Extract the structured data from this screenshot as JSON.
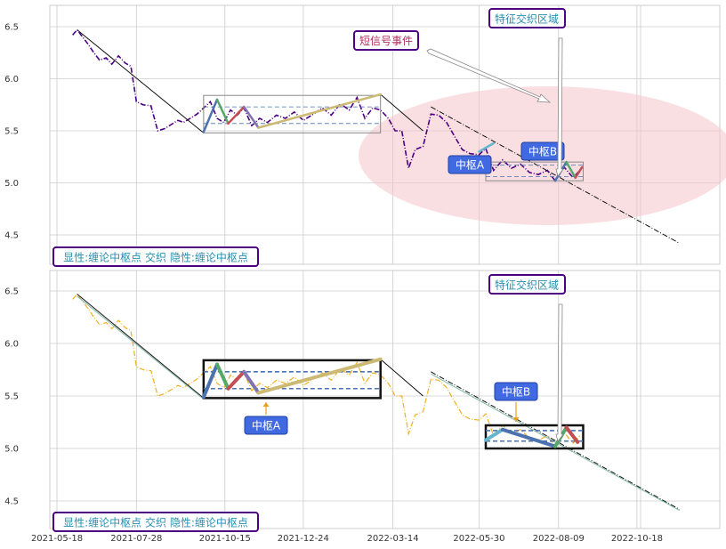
{
  "chart_data": [
    {
      "type": "line",
      "panel": "top",
      "ylim": [
        4.25,
        6.68
      ],
      "yticks": [
        4.5,
        5.0,
        5.5,
        6.0,
        6.5
      ],
      "grid": true,
      "price_color": "#4b0082",
      "price": [
        {
          "x": "2021-06-01",
          "y": 6.42
        },
        {
          "x": "2021-06-05",
          "y": 6.47
        },
        {
          "x": "2021-06-10",
          "y": 6.4
        },
        {
          "x": "2021-06-15",
          "y": 6.33
        },
        {
          "x": "2021-06-20",
          "y": 6.25
        },
        {
          "x": "2021-06-25",
          "y": 6.18
        },
        {
          "x": "2021-07-01",
          "y": 6.2
        },
        {
          "x": "2021-07-06",
          "y": 6.14
        },
        {
          "x": "2021-07-12",
          "y": 6.22
        },
        {
          "x": "2021-07-18",
          "y": 6.15
        },
        {
          "x": "2021-07-23",
          "y": 6.12
        },
        {
          "x": "2021-07-28",
          "y": 5.78
        },
        {
          "x": "2021-08-03",
          "y": 5.75
        },
        {
          "x": "2021-08-10",
          "y": 5.74
        },
        {
          "x": "2021-08-16",
          "y": 5.5
        },
        {
          "x": "2021-08-22",
          "y": 5.52
        },
        {
          "x": "2021-08-28",
          "y": 5.56
        },
        {
          "x": "2021-09-03",
          "y": 5.6
        },
        {
          "x": "2021-09-08",
          "y": 5.58
        },
        {
          "x": "2021-09-14",
          "y": 5.62
        },
        {
          "x": "2021-09-20",
          "y": 5.66
        },
        {
          "x": "2021-09-26",
          "y": 5.72
        },
        {
          "x": "2021-10-02",
          "y": 5.78
        },
        {
          "x": "2021-10-08",
          "y": 5.62
        },
        {
          "x": "2021-10-14",
          "y": 5.58
        },
        {
          "x": "2021-10-20",
          "y": 5.7
        },
        {
          "x": "2021-10-26",
          "y": 5.65
        },
        {
          "x": "2021-11-01",
          "y": 5.72
        },
        {
          "x": "2021-11-08",
          "y": 5.55
        },
        {
          "x": "2021-11-15",
          "y": 5.62
        },
        {
          "x": "2021-11-22",
          "y": 5.58
        },
        {
          "x": "2021-11-30",
          "y": 5.65
        },
        {
          "x": "2021-12-08",
          "y": 5.62
        },
        {
          "x": "2021-12-16",
          "y": 5.68
        },
        {
          "x": "2021-12-24",
          "y": 5.6
        },
        {
          "x": "2022-01-02",
          "y": 5.66
        },
        {
          "x": "2022-01-10",
          "y": 5.72
        },
        {
          "x": "2022-01-18",
          "y": 5.65
        },
        {
          "x": "2022-01-26",
          "y": 5.76
        },
        {
          "x": "2022-02-03",
          "y": 5.7
        },
        {
          "x": "2022-02-10",
          "y": 5.82
        },
        {
          "x": "2022-02-17",
          "y": 5.62
        },
        {
          "x": "2022-02-24",
          "y": 5.72
        },
        {
          "x": "2022-03-03",
          "y": 5.7
        },
        {
          "x": "2022-03-10",
          "y": 5.62
        },
        {
          "x": "2022-03-16",
          "y": 5.5
        },
        {
          "x": "2022-03-22",
          "y": 5.5
        },
        {
          "x": "2022-03-28",
          "y": 5.14
        },
        {
          "x": "2022-04-03",
          "y": 5.32
        },
        {
          "x": "2022-04-10",
          "y": 5.35
        },
        {
          "x": "2022-04-17",
          "y": 5.66
        },
        {
          "x": "2022-04-24",
          "y": 5.65
        },
        {
          "x": "2022-05-01",
          "y": 5.58
        },
        {
          "x": "2022-05-08",
          "y": 5.45
        },
        {
          "x": "2022-05-15",
          "y": 5.32
        },
        {
          "x": "2022-05-22",
          "y": 5.28
        },
        {
          "x": "2022-05-30",
          "y": 5.27
        },
        {
          "x": "2022-06-05",
          "y": 5.33
        },
        {
          "x": "2022-06-12",
          "y": 5.12
        },
        {
          "x": "2022-06-20",
          "y": 5.22
        },
        {
          "x": "2022-06-28",
          "y": 5.14
        },
        {
          "x": "2022-07-06",
          "y": 5.18
        },
        {
          "x": "2022-07-14",
          "y": 5.1
        },
        {
          "x": "2022-07-22",
          "y": 5.08
        },
        {
          "x": "2022-07-30",
          "y": 5.12
        },
        {
          "x": "2022-08-06",
          "y": 5.02
        },
        {
          "x": "2022-08-14",
          "y": 5.15
        },
        {
          "x": "2022-08-22",
          "y": 5.05
        },
        {
          "x": "2022-08-28",
          "y": 5.12
        }
      ],
      "strokes": [
        {
          "x0": "2021-06-05",
          "y0": 6.47,
          "x1": "2021-09-26",
          "y1": 5.48
        },
        {
          "x0": "2022-03-03",
          "y0": 5.85,
          "x1": "2022-04-10",
          "y1": 5.5
        },
        {
          "x0": "2022-04-17",
          "y0": 5.73,
          "x1": "2022-11-25",
          "y1": 4.42
        }
      ],
      "bi_segments": [
        {
          "color": "#4c72b0",
          "points": [
            [
              "2021-09-26",
              5.49
            ],
            [
              "2021-10-08",
              5.8
            ]
          ]
        },
        {
          "color": "#55a868",
          "points": [
            [
              "2021-10-08",
              5.8
            ],
            [
              "2021-10-18",
              5.57
            ]
          ]
        },
        {
          "color": "#c44e52",
          "points": [
            [
              "2021-10-18",
              5.57
            ],
            [
              "2021-11-01",
              5.73
            ]
          ]
        },
        {
          "color": "#8172b2",
          "points": [
            [
              "2021-11-01",
              5.73
            ],
            [
              "2021-11-14",
              5.53
            ]
          ]
        },
        {
          "color": "#ccb974",
          "points": [
            [
              "2021-11-14",
              5.53
            ],
            [
              "2022-03-03",
              5.85
            ]
          ]
        },
        {
          "color": "#64b5cd",
          "points": [
            [
              "2022-05-30",
              5.3
            ],
            [
              "2022-06-12",
              5.38
            ]
          ]
        },
        {
          "color": "#4c72b0",
          "points": [
            [
              "2022-08-06",
              5.02
            ],
            [
              "2022-08-16",
              5.2
            ]
          ]
        },
        {
          "color": "#55a868",
          "points": [
            [
              "2022-08-16",
              5.2
            ],
            [
              "2022-08-24",
              5.05
            ]
          ]
        },
        {
          "color": "#c44e52",
          "points": [
            [
              "2022-08-24",
              5.05
            ],
            [
              "2022-08-30",
              5.15
            ]
          ]
        }
      ],
      "pivots": [
        {
          "x0": "2021-09-26",
          "x1": "2022-03-03",
          "y0": 5.48,
          "y1": 5.84,
          "inner_low": 5.57,
          "inner_high": 5.73
        },
        {
          "x0": "2022-06-05",
          "x1": "2022-08-31",
          "y0": 5.02,
          "y1": 5.2,
          "inner_low": 5.06,
          "inner_high": 5.17
        }
      ],
      "labels": [
        "中枢A",
        "中枢B"
      ],
      "annotations": {
        "signal_event": "短信号事件",
        "feature_zone": "特征交织区域",
        "legend": "显性:缠论中枢点 交织 隐性:缠论中枢点"
      }
    },
    {
      "type": "line",
      "panel": "bottom",
      "ylim": [
        4.25,
        6.68
      ],
      "yticks": [
        4.5,
        5.0,
        5.5,
        6.0,
        6.5
      ],
      "grid": true,
      "price_color": "#f0b020",
      "xticks": [
        "2021-05-18",
        "2021-07-28",
        "2021-10-15",
        "2021-12-24",
        "2022-03-14",
        "2022-05-30",
        "2022-08-09",
        "2022-10-18"
      ],
      "strokes": [
        {
          "x0": "2021-06-05",
          "y0": 6.47,
          "x1": "2021-09-26",
          "y1": 5.48
        },
        {
          "x0": "2022-03-03",
          "y0": 5.85,
          "x1": "2022-04-10",
          "y1": 5.5
        },
        {
          "x0": "2022-04-17",
          "y0": 5.73,
          "x1": "2022-11-25",
          "y1": 4.42
        }
      ],
      "bi_segments": [
        {
          "color": "#4c72b0",
          "points": [
            [
              "2021-09-26",
              5.49
            ],
            [
              "2021-10-08",
              5.8
            ]
          ]
        },
        {
          "color": "#55a868",
          "points": [
            [
              "2021-10-08",
              5.8
            ],
            [
              "2021-10-18",
              5.57
            ]
          ]
        },
        {
          "color": "#c44e52",
          "points": [
            [
              "2021-10-18",
              5.57
            ],
            [
              "2021-11-01",
              5.73
            ]
          ]
        },
        {
          "color": "#8172b2",
          "points": [
            [
              "2021-11-01",
              5.73
            ],
            [
              "2021-11-14",
              5.53
            ]
          ]
        },
        {
          "color": "#ccb974",
          "points": [
            [
              "2021-11-14",
              5.53
            ],
            [
              "2022-03-03",
              5.85
            ]
          ]
        },
        {
          "color": "#64b5cd",
          "points": [
            [
              "2022-06-05",
              5.08
            ],
            [
              "2022-06-20",
              5.18
            ]
          ]
        },
        {
          "color": "#4c72b0",
          "points": [
            [
              "2022-06-20",
              5.18
            ],
            [
              "2022-08-06",
              5.02
            ]
          ]
        },
        {
          "color": "#55a868",
          "points": [
            [
              "2022-08-06",
              5.02
            ],
            [
              "2022-08-16",
              5.2
            ]
          ]
        },
        {
          "color": "#c44e52",
          "points": [
            [
              "2022-08-16",
              5.2
            ],
            [
              "2022-08-26",
              5.06
            ]
          ]
        }
      ],
      "pivots": [
        {
          "x0": "2021-09-26",
          "x1": "2022-03-03",
          "y0": 5.48,
          "y1": 5.84,
          "inner_low": 5.57,
          "inner_high": 5.73
        },
        {
          "x0": "2022-06-05",
          "x1": "2022-08-31",
          "y0": 5.0,
          "y1": 5.22,
          "inner_low": 5.07,
          "inner_high": 5.17
        }
      ],
      "labels": [
        "中枢A",
        "中枢B"
      ],
      "annotations": {
        "feature_zone": "特征交织区域",
        "legend": "显性:缠论中枢点 交织 隐性:缠论中枢点"
      }
    }
  ],
  "colors": {
    "label_bg": "#4169e1",
    "annotation_border": "#4b0082",
    "zone_fill": "#f4c4c8",
    "grid": "#cccccc"
  }
}
